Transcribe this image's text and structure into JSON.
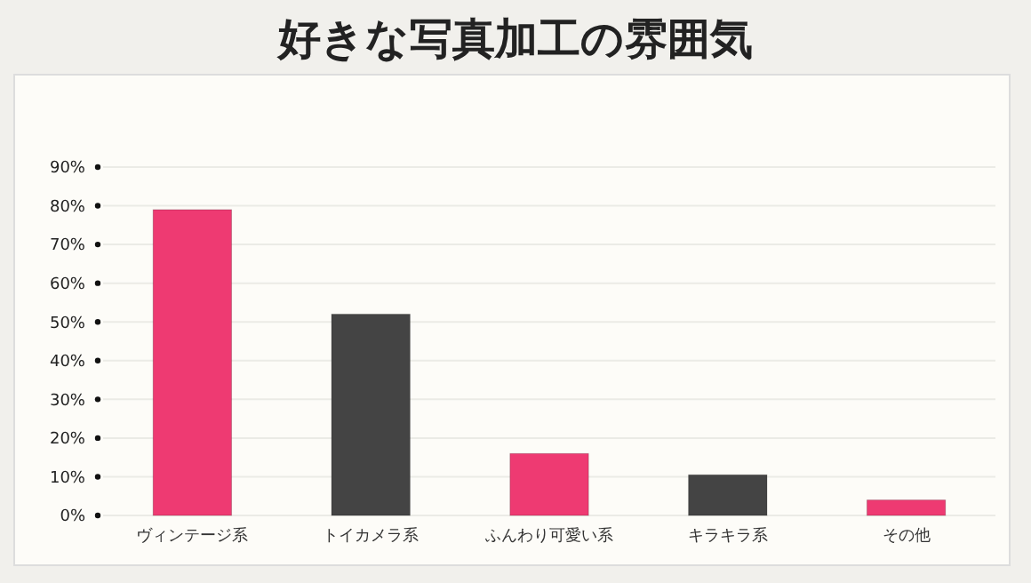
{
  "chart_data": {
    "type": "bar",
    "title": "好きな写真加工の雰囲気",
    "categories": [
      "ヴィンテージ系",
      "トイカメラ系",
      "ふんわり可愛い系",
      "キラキラ系",
      "その他"
    ],
    "values": [
      79,
      52,
      16,
      10.5,
      4
    ],
    "colors": [
      "#ee3a72",
      "#444444",
      "#ee3a72",
      "#444444",
      "#ee3a72"
    ],
    "ylim": [
      0,
      90
    ],
    "yticks": [
      {
        "value": 0,
        "label": "0%"
      },
      {
        "value": 10,
        "label": "10%"
      },
      {
        "value": 20,
        "label": "20%"
      },
      {
        "value": 30,
        "label": "30%"
      },
      {
        "value": 40,
        "label": "40%"
      },
      {
        "value": 50,
        "label": "50%"
      },
      {
        "value": 60,
        "label": "60%"
      },
      {
        "value": 70,
        "label": "70%"
      },
      {
        "value": 80,
        "label": "80%"
      },
      {
        "value": 90,
        "label": "90%"
      }
    ],
    "grid": "y"
  }
}
